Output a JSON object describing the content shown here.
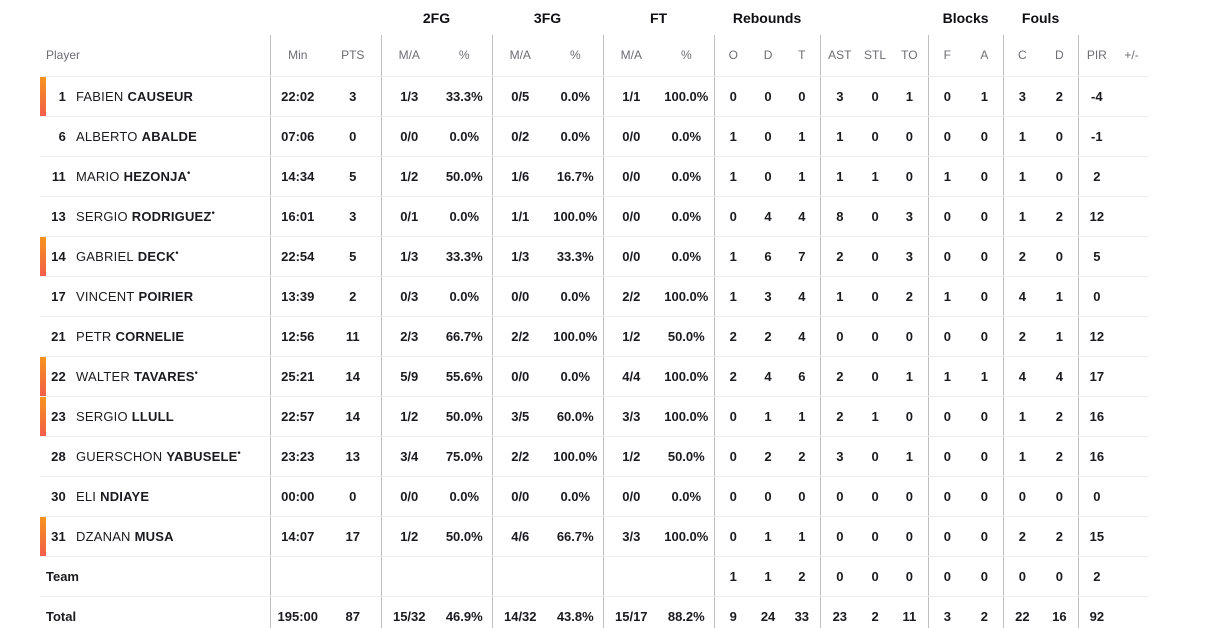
{
  "table": {
    "group_headers": {
      "fg2": "2FG",
      "fg3": "3FG",
      "ft": "FT",
      "rebounds": "Rebounds",
      "blocks": "Blocks",
      "fouls": "Fouls"
    },
    "sub_headers": {
      "player": "Player",
      "min": "Min",
      "pts": "PTS",
      "ma": "M/A",
      "pct": "%",
      "reb_o": "O",
      "reb_d": "D",
      "reb_t": "T",
      "ast": "AST",
      "stl": "STL",
      "to": "TO",
      "blk_f": "F",
      "blk_a": "A",
      "foul_c": "C",
      "foul_d": "D",
      "pir": "PIR",
      "plus_minus": "+/-"
    },
    "starter_marker": "•",
    "accent_color_top": "#f7941e",
    "accent_color_bottom": "#f15e49",
    "divider_color": "#bfbfc3",
    "row_line_color": "#ededee",
    "rows": [
      {
        "num": "1",
        "first": "FABIEN",
        "last": "CAUSEUR",
        "starter": false,
        "on_court": true,
        "min": "22:02",
        "pts": "3",
        "fg2_ma": "1/3",
        "fg2_pct": "33.3%",
        "fg3_ma": "0/5",
        "fg3_pct": "0.0%",
        "ft_ma": "1/1",
        "ft_pct": "100.0%",
        "reb_o": "0",
        "reb_d": "0",
        "reb_t": "0",
        "ast": "3",
        "stl": "0",
        "to": "1",
        "blk_f": "0",
        "blk_a": "1",
        "foul_c": "3",
        "foul_d": "2",
        "pir": "-4",
        "plus_minus": ""
      },
      {
        "num": "6",
        "first": "ALBERTO",
        "last": "ABALDE",
        "starter": false,
        "on_court": false,
        "min": "07:06",
        "pts": "0",
        "fg2_ma": "0/0",
        "fg2_pct": "0.0%",
        "fg3_ma": "0/2",
        "fg3_pct": "0.0%",
        "ft_ma": "0/0",
        "ft_pct": "0.0%",
        "reb_o": "1",
        "reb_d": "0",
        "reb_t": "1",
        "ast": "1",
        "stl": "0",
        "to": "0",
        "blk_f": "0",
        "blk_a": "0",
        "foul_c": "1",
        "foul_d": "0",
        "pir": "-1",
        "plus_minus": ""
      },
      {
        "num": "11",
        "first": "MARIO",
        "last": "HEZONJA",
        "starter": true,
        "on_court": false,
        "min": "14:34",
        "pts": "5",
        "fg2_ma": "1/2",
        "fg2_pct": "50.0%",
        "fg3_ma": "1/6",
        "fg3_pct": "16.7%",
        "ft_ma": "0/0",
        "ft_pct": "0.0%",
        "reb_o": "1",
        "reb_d": "0",
        "reb_t": "1",
        "ast": "1",
        "stl": "1",
        "to": "0",
        "blk_f": "1",
        "blk_a": "0",
        "foul_c": "1",
        "foul_d": "0",
        "pir": "2",
        "plus_minus": ""
      },
      {
        "num": "13",
        "first": "SERGIO",
        "last": "RODRIGUEZ",
        "starter": true,
        "on_court": false,
        "min": "16:01",
        "pts": "3",
        "fg2_ma": "0/1",
        "fg2_pct": "0.0%",
        "fg3_ma": "1/1",
        "fg3_pct": "100.0%",
        "ft_ma": "0/0",
        "ft_pct": "0.0%",
        "reb_o": "0",
        "reb_d": "4",
        "reb_t": "4",
        "ast": "8",
        "stl": "0",
        "to": "3",
        "blk_f": "0",
        "blk_a": "0",
        "foul_c": "1",
        "foul_d": "2",
        "pir": "12",
        "plus_minus": ""
      },
      {
        "num": "14",
        "first": "GABRIEL",
        "last": "DECK",
        "starter": true,
        "on_court": true,
        "min": "22:54",
        "pts": "5",
        "fg2_ma": "1/3",
        "fg2_pct": "33.3%",
        "fg3_ma": "1/3",
        "fg3_pct": "33.3%",
        "ft_ma": "0/0",
        "ft_pct": "0.0%",
        "reb_o": "1",
        "reb_d": "6",
        "reb_t": "7",
        "ast": "2",
        "stl": "0",
        "to": "3",
        "blk_f": "0",
        "blk_a": "0",
        "foul_c": "2",
        "foul_d": "0",
        "pir": "5",
        "plus_minus": ""
      },
      {
        "num": "17",
        "first": "VINCENT",
        "last": "POIRIER",
        "starter": false,
        "on_court": false,
        "min": "13:39",
        "pts": "2",
        "fg2_ma": "0/3",
        "fg2_pct": "0.0%",
        "fg3_ma": "0/0",
        "fg3_pct": "0.0%",
        "ft_ma": "2/2",
        "ft_pct": "100.0%",
        "reb_o": "1",
        "reb_d": "3",
        "reb_t": "4",
        "ast": "1",
        "stl": "0",
        "to": "2",
        "blk_f": "1",
        "blk_a": "0",
        "foul_c": "4",
        "foul_d": "1",
        "pir": "0",
        "plus_minus": ""
      },
      {
        "num": "21",
        "first": "PETR",
        "last": "CORNELIE",
        "starter": false,
        "on_court": false,
        "min": "12:56",
        "pts": "11",
        "fg2_ma": "2/3",
        "fg2_pct": "66.7%",
        "fg3_ma": "2/2",
        "fg3_pct": "100.0%",
        "ft_ma": "1/2",
        "ft_pct": "50.0%",
        "reb_o": "2",
        "reb_d": "2",
        "reb_t": "4",
        "ast": "0",
        "stl": "0",
        "to": "0",
        "blk_f": "0",
        "blk_a": "0",
        "foul_c": "2",
        "foul_d": "1",
        "pir": "12",
        "plus_minus": ""
      },
      {
        "num": "22",
        "first": "WALTER",
        "last": "TAVARES",
        "starter": true,
        "on_court": true,
        "min": "25:21",
        "pts": "14",
        "fg2_ma": "5/9",
        "fg2_pct": "55.6%",
        "fg3_ma": "0/0",
        "fg3_pct": "0.0%",
        "ft_ma": "4/4",
        "ft_pct": "100.0%",
        "reb_o": "2",
        "reb_d": "4",
        "reb_t": "6",
        "ast": "2",
        "stl": "0",
        "to": "1",
        "blk_f": "1",
        "blk_a": "1",
        "foul_c": "4",
        "foul_d": "4",
        "pir": "17",
        "plus_minus": ""
      },
      {
        "num": "23",
        "first": "SERGIO",
        "last": "LLULL",
        "starter": false,
        "on_court": true,
        "min": "22:57",
        "pts": "14",
        "fg2_ma": "1/2",
        "fg2_pct": "50.0%",
        "fg3_ma": "3/5",
        "fg3_pct": "60.0%",
        "ft_ma": "3/3",
        "ft_pct": "100.0%",
        "reb_o": "0",
        "reb_d": "1",
        "reb_t": "1",
        "ast": "2",
        "stl": "1",
        "to": "0",
        "blk_f": "0",
        "blk_a": "0",
        "foul_c": "1",
        "foul_d": "2",
        "pir": "16",
        "plus_minus": ""
      },
      {
        "num": "28",
        "first": "GUERSCHON",
        "last": "YABUSELE",
        "starter": true,
        "on_court": false,
        "min": "23:23",
        "pts": "13",
        "fg2_ma": "3/4",
        "fg2_pct": "75.0%",
        "fg3_ma": "2/2",
        "fg3_pct": "100.0%",
        "ft_ma": "1/2",
        "ft_pct": "50.0%",
        "reb_o": "0",
        "reb_d": "2",
        "reb_t": "2",
        "ast": "3",
        "stl": "0",
        "to": "1",
        "blk_f": "0",
        "blk_a": "0",
        "foul_c": "1",
        "foul_d": "2",
        "pir": "16",
        "plus_minus": ""
      },
      {
        "num": "30",
        "first": "ELI",
        "last": "NDIAYE",
        "starter": false,
        "on_court": false,
        "min": "00:00",
        "pts": "0",
        "fg2_ma": "0/0",
        "fg2_pct": "0.0%",
        "fg3_ma": "0/0",
        "fg3_pct": "0.0%",
        "ft_ma": "0/0",
        "ft_pct": "0.0%",
        "reb_o": "0",
        "reb_d": "0",
        "reb_t": "0",
        "ast": "0",
        "stl": "0",
        "to": "0",
        "blk_f": "0",
        "blk_a": "0",
        "foul_c": "0",
        "foul_d": "0",
        "pir": "0",
        "plus_minus": ""
      },
      {
        "num": "31",
        "first": "DZANAN",
        "last": "MUSA",
        "starter": false,
        "on_court": true,
        "min": "14:07",
        "pts": "17",
        "fg2_ma": "1/2",
        "fg2_pct": "50.0%",
        "fg3_ma": "4/6",
        "fg3_pct": "66.7%",
        "ft_ma": "3/3",
        "ft_pct": "100.0%",
        "reb_o": "0",
        "reb_d": "1",
        "reb_t": "1",
        "ast": "0",
        "stl": "0",
        "to": "0",
        "blk_f": "0",
        "blk_a": "0",
        "foul_c": "2",
        "foul_d": "2",
        "pir": "15",
        "plus_minus": ""
      }
    ],
    "team_row": {
      "label": "Team",
      "min": "",
      "pts": "",
      "fg2_ma": "",
      "fg2_pct": "",
      "fg3_ma": "",
      "fg3_pct": "",
      "ft_ma": "",
      "ft_pct": "",
      "reb_o": "1",
      "reb_d": "1",
      "reb_t": "2",
      "ast": "0",
      "stl": "0",
      "to": "0",
      "blk_f": "0",
      "blk_a": "0",
      "foul_c": "0",
      "foul_d": "0",
      "pir": "2",
      "plus_minus": ""
    },
    "total_row": {
      "label": "Total",
      "min": "195:00",
      "pts": "87",
      "fg2_ma": "15/32",
      "fg2_pct": "46.9%",
      "fg3_ma": "14/32",
      "fg3_pct": "43.8%",
      "ft_ma": "15/17",
      "ft_pct": "88.2%",
      "reb_o": "9",
      "reb_d": "24",
      "reb_t": "33",
      "ast": "23",
      "stl": "2",
      "to": "11",
      "blk_f": "3",
      "blk_a": "2",
      "foul_c": "22",
      "foul_d": "16",
      "pir": "92",
      "plus_minus": ""
    }
  }
}
